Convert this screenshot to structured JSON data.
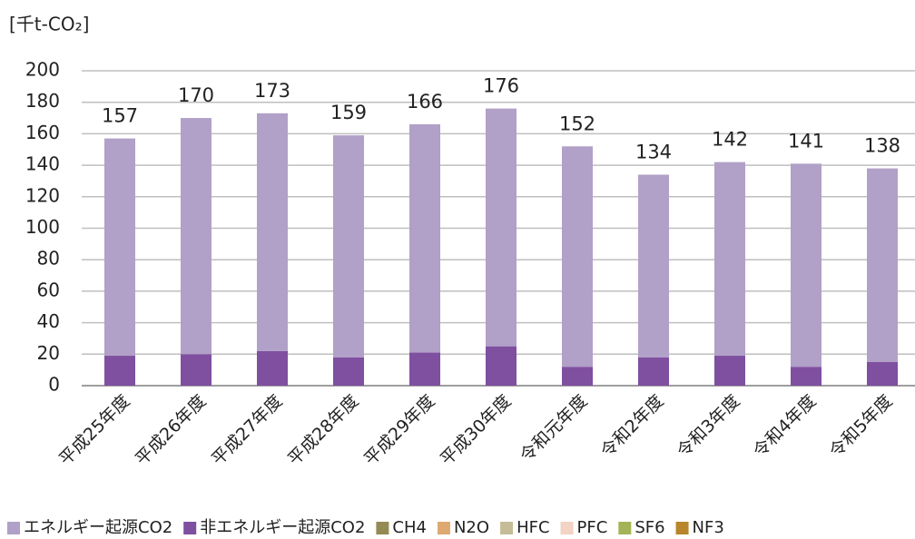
{
  "chart_data": {
    "type": "stacked_bar",
    "y_label": "[千t-CO₂]",
    "categories": [
      "平成25年度",
      "平成26年度",
      "平成27年度",
      "平成28年度",
      "平成29年度",
      "平成30年度",
      "令和元年度",
      "令和2年度",
      "令和3年度",
      "令和4年度",
      "令和5年度"
    ],
    "series": [
      {
        "name": "非エネルギー起源CO2",
        "color": "#7f4fa0",
        "values": [
          19,
          20,
          22,
          18,
          21,
          25,
          12,
          18,
          19,
          12,
          15
        ]
      },
      {
        "name": "CH4",
        "color": "#948a54",
        "values": [
          0,
          0,
          0,
          0,
          0,
          0,
          0,
          0,
          0,
          0,
          0
        ]
      },
      {
        "name": "N2O",
        "color": "#dea971",
        "values": [
          0,
          0,
          0,
          0,
          0,
          0,
          0,
          0,
          0,
          0,
          0
        ]
      },
      {
        "name": "HFC",
        "color": "#c4bd97",
        "values": [
          0,
          0,
          0,
          0,
          0,
          0,
          0,
          0,
          0,
          0,
          0
        ]
      },
      {
        "name": "PFC",
        "color": "#f2d3c4",
        "values": [
          0,
          0,
          0,
          0,
          0,
          0,
          0,
          0,
          0,
          0,
          0
        ]
      },
      {
        "name": "SF6",
        "color": "#a3b457",
        "values": [
          0,
          0,
          0,
          0,
          0,
          0,
          0,
          0,
          0,
          0,
          0
        ]
      },
      {
        "name": "NF3",
        "color": "#b8862b",
        "values": [
          0,
          0,
          0,
          0,
          0,
          0,
          0,
          0,
          0,
          0,
          0
        ]
      },
      {
        "name": "エネルギー起源CO2",
        "color": "#b1a0c7",
        "values": [
          138,
          150,
          151,
          141,
          145,
          151,
          140,
          116,
          123,
          129,
          123
        ]
      }
    ],
    "legend_order": [
      7,
      0,
      1,
      2,
      3,
      4,
      5,
      6
    ],
    "totals": [
      157,
      170,
      173,
      159,
      166,
      176,
      152,
      134,
      142,
      141,
      138
    ],
    "ylim": [
      0,
      200
    ],
    "yticks": [
      0,
      20,
      40,
      60,
      80,
      100,
      120,
      140,
      160,
      180,
      200
    ],
    "grid": true
  }
}
